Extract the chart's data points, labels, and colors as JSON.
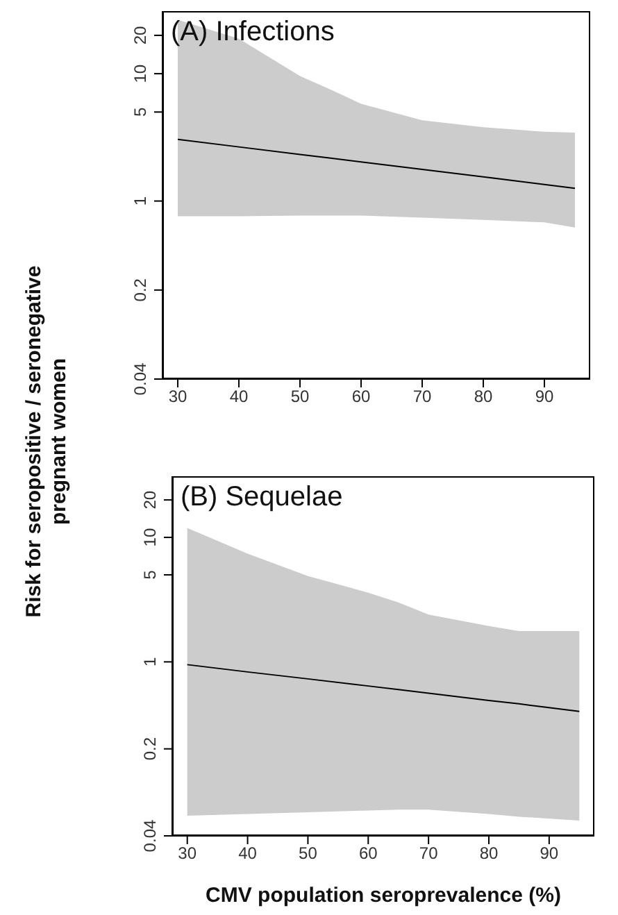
{
  "chart_data": [
    {
      "type": "line",
      "title": "(A) Infections",
      "ylabel": "Risk for seropositive / seronegative\npregnant women",
      "log": "y",
      "xlim": [
        27.5,
        97.5
      ],
      "xticks": [
        30,
        40,
        50,
        60,
        70,
        80,
        90
      ],
      "ylim": [
        0.04,
        31
      ],
      "yticks": [
        0.04,
        0.2,
        1,
        5,
        10,
        20
      ],
      "series": [
        {
          "color": "#000000",
          "x": [
            30,
            40,
            50,
            55,
            60,
            70,
            80,
            90,
            95
          ],
          "values": [
            3.05,
            2.66,
            2.32,
            2.17,
            2.03,
            1.77,
            1.55,
            1.35,
            1.26
          ],
          "lower": [
            0.76,
            0.76,
            0.77,
            0.77,
            0.77,
            0.74,
            0.71,
            0.68,
            0.62
          ],
          "upper": [
            26.5,
            18.8,
            9.6,
            7.5,
            5.8,
            4.3,
            3.8,
            3.5,
            3.45
          ]
        }
      ]
    },
    {
      "type": "line",
      "title": "(B) Sequelae",
      "xlabel": "CMV population seroprevalence (%)",
      "log": "y",
      "xlim": [
        27.5,
        97.5
      ],
      "xticks": [
        30,
        40,
        50,
        60,
        70,
        80,
        90
      ],
      "ylim": [
        0.04,
        31
      ],
      "yticks": [
        0.04,
        0.2,
        1,
        5,
        10,
        20
      ],
      "series": [
        {
          "color": "#000000",
          "x": [
            30,
            40,
            50,
            60,
            65,
            70,
            80,
            85,
            95
          ],
          "values": [
            0.95,
            0.83,
            0.73,
            0.64,
            0.6,
            0.56,
            0.49,
            0.46,
            0.4
          ],
          "lower": [
            0.058,
            0.06,
            0.062,
            0.064,
            0.065,
            0.065,
            0.06,
            0.057,
            0.053
          ],
          "upper": [
            11.9,
            7.4,
            4.9,
            3.6,
            3.0,
            2.4,
            1.94,
            1.77,
            1.77
          ]
        }
      ]
    }
  ]
}
